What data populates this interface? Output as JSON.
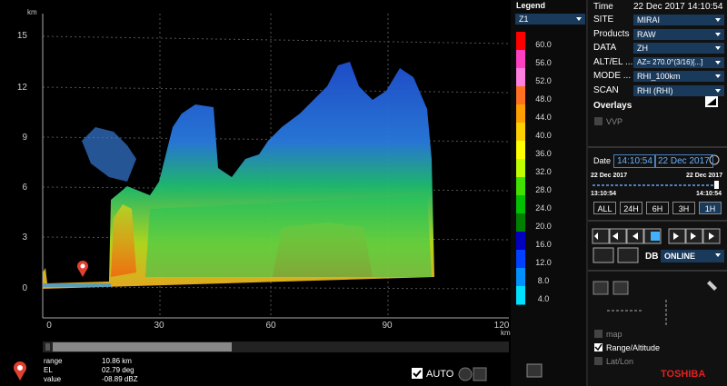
{
  "plot": {
    "y_unit": "km",
    "y_ticks": [
      "15",
      "12",
      "9",
      "6",
      "3",
      "0"
    ],
    "x_ticks": [
      "0",
      "30",
      "60",
      "90",
      "120"
    ],
    "x_unit": "km"
  },
  "legend": {
    "title": "Legend",
    "product": "Z1",
    "scale": [
      "60.0",
      "56.0",
      "52.0",
      "48.0",
      "44.0",
      "40.0",
      "36.0",
      "32.0",
      "28.0",
      "24.0",
      "20.0",
      "16.0",
      "12.0",
      "8.0",
      "4.0"
    ]
  },
  "panel": {
    "time_label": "Time",
    "time": "22 Dec 2017 14:10:54",
    "fields": [
      {
        "label": "SITE",
        "value": "MIRAI"
      },
      {
        "label": "Products",
        "value": "RAW"
      },
      {
        "label": "DATA",
        "value": "ZH"
      },
      {
        "label": "ALT/EL ...",
        "value": "AZ= 270.0°(3/16)[...]"
      },
      {
        "label": "MODE ...",
        "value": "RHI_100km"
      },
      {
        "label": "SCAN",
        "value": "RHI (RHI)"
      }
    ],
    "overlays": "Overlays",
    "vvp": "VVP",
    "date_label": "Date",
    "date_time": "14:10:54",
    "date_day": "22 Dec 2017",
    "range_start_date": "22 Dec 2017",
    "range_end_date": "22 Dec 2017",
    "range_start_time": "13:10:54",
    "range_end_time": "14:10:54",
    "periods": [
      "ALL",
      "24H",
      "6H",
      "3H",
      "1H"
    ],
    "db_label": "DB",
    "db": "ONLINE",
    "layers": [
      "map",
      "Range/Altitude",
      "Lat/Lon"
    ],
    "brand": "TOSHIBA"
  },
  "info": {
    "rows": [
      {
        "label": "range",
        "value": "10.86 km"
      },
      {
        "label": "EL",
        "value": "02.79 deg"
      },
      {
        "label": "value",
        "value": "-08.89 dBZ"
      }
    ],
    "auto": "AUTO"
  }
}
